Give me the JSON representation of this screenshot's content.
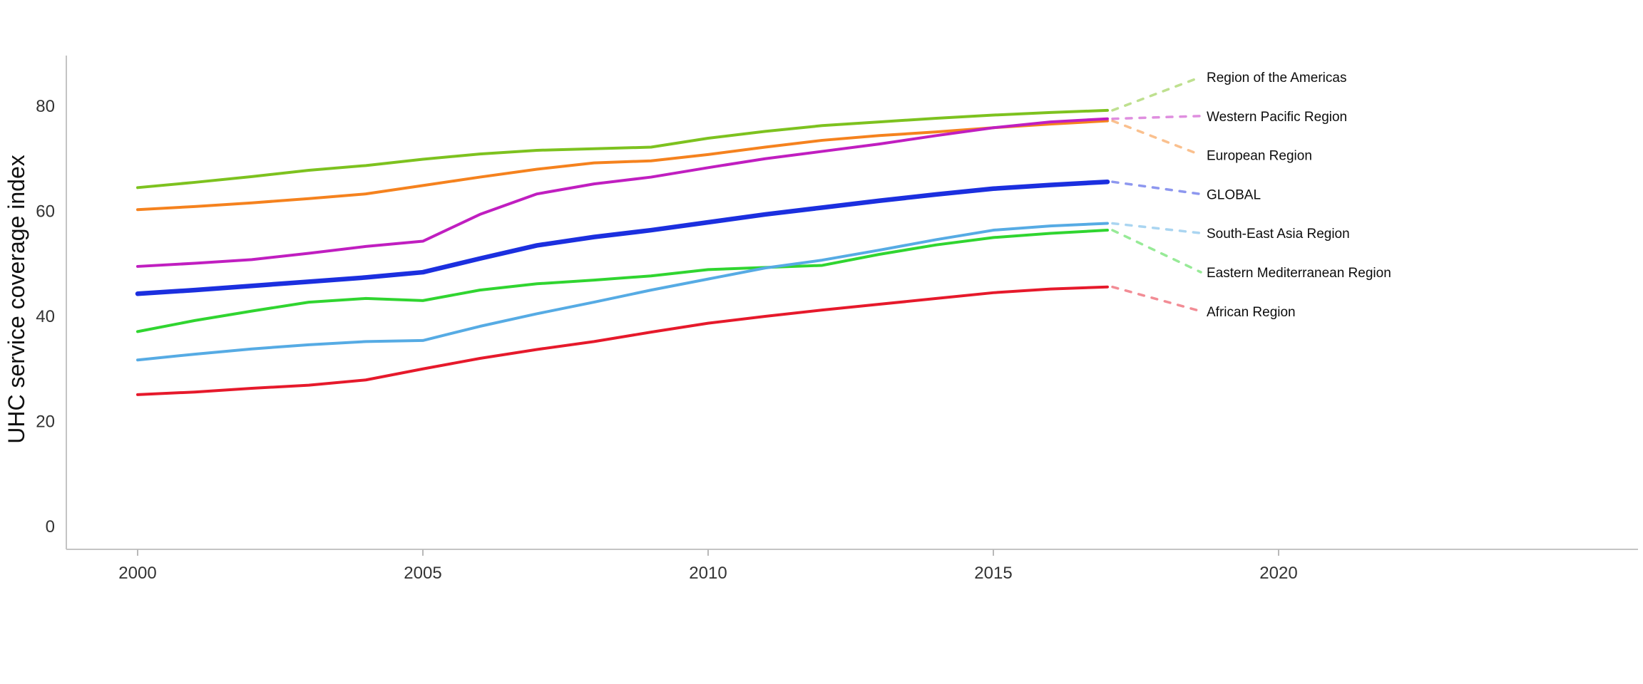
{
  "page": {
    "background": "#ffffff"
  },
  "chart_data": {
    "type": "line",
    "title": "",
    "xlabel": "",
    "ylabel": "UHC service coverage index",
    "grid": false,
    "legend_position": "right-annotations",
    "xlim": [
      1998.75,
      2026.3
    ],
    "ylim": [
      0,
      89.6
    ],
    "x_ticks": [
      2000,
      2005,
      2010,
      2015,
      2020
    ],
    "y_ticks": [
      0,
      20,
      40,
      60,
      80
    ],
    "x": [
      2000,
      2001,
      2002,
      2003,
      2004,
      2005,
      2006,
      2007,
      2008,
      2009,
      2010,
      2011,
      2012,
      2013,
      2014,
      2015,
      2016,
      2017
    ],
    "series": [
      {
        "id": "americas",
        "label": "Region of the Americas",
        "color": "#7DC21F",
        "emphasis": false,
        "values": [
          64.5,
          65.5,
          66.6,
          67.8,
          68.7,
          69.9,
          70.9,
          71.6,
          71.9,
          72.2,
          73.9,
          75.2,
          76.3,
          77.0,
          77.7,
          78.3,
          78.8,
          79.2
        ]
      },
      {
        "id": "western-pacific",
        "label": "Western Pacific Region",
        "color": "#C01EC0",
        "emphasis": false,
        "values": [
          49.5,
          50.1,
          50.8,
          52.0,
          53.3,
          54.3,
          59.4,
          63.3,
          65.2,
          66.5,
          68.3,
          70.0,
          71.4,
          72.8,
          74.4,
          75.9,
          77.0,
          77.6
        ]
      },
      {
        "id": "european",
        "label": "European Region",
        "color": "#F5821E",
        "emphasis": false,
        "values": [
          60.3,
          60.9,
          61.6,
          62.4,
          63.3,
          64.9,
          66.5,
          68.0,
          69.2,
          69.6,
          70.8,
          72.2,
          73.5,
          74.4,
          75.1,
          75.9,
          76.6,
          77.2
        ]
      },
      {
        "id": "global",
        "label": "GLOBAL",
        "color": "#1B2FDF",
        "emphasis": true,
        "values": [
          44.3,
          45.0,
          45.8,
          46.6,
          47.4,
          48.4,
          51.0,
          53.5,
          55.1,
          56.4,
          57.9,
          59.4,
          60.7,
          62.0,
          63.2,
          64.3,
          65.0,
          65.6
        ]
      },
      {
        "id": "south-east-asia",
        "label": "South-East Asia Region",
        "color": "#56ABE4",
        "emphasis": false,
        "values": [
          31.7,
          32.8,
          33.8,
          34.6,
          35.2,
          35.4,
          38.1,
          40.5,
          42.7,
          45.0,
          47.1,
          49.2,
          50.7,
          52.6,
          54.6,
          56.4,
          57.2,
          57.7
        ]
      },
      {
        "id": "eastern-mediterranean",
        "label": "Eastern Mediterranean Region",
        "color": "#30D530",
        "emphasis": false,
        "values": [
          37.1,
          39.2,
          41.0,
          42.7,
          43.4,
          43.0,
          45.0,
          46.2,
          46.9,
          47.7,
          48.9,
          49.3,
          49.7,
          51.8,
          53.6,
          55.0,
          55.8,
          56.4
        ]
      },
      {
        "id": "african",
        "label": "African Region",
        "color": "#E6192B",
        "emphasis": false,
        "values": [
          25.1,
          25.6,
          26.3,
          26.9,
          27.9,
          30.0,
          32.0,
          33.7,
          35.2,
          37.0,
          38.7,
          40.0,
          41.2,
          42.3,
          43.4,
          44.5,
          45.2,
          45.6
        ]
      }
    ],
    "style": {
      "axis_color": "#c4c4c4",
      "tick_color": "#b9b9b9",
      "tick_label_color": "#333333",
      "annotation_label_color": "#0d0d0d",
      "ylabel_color": "#111111"
    }
  }
}
